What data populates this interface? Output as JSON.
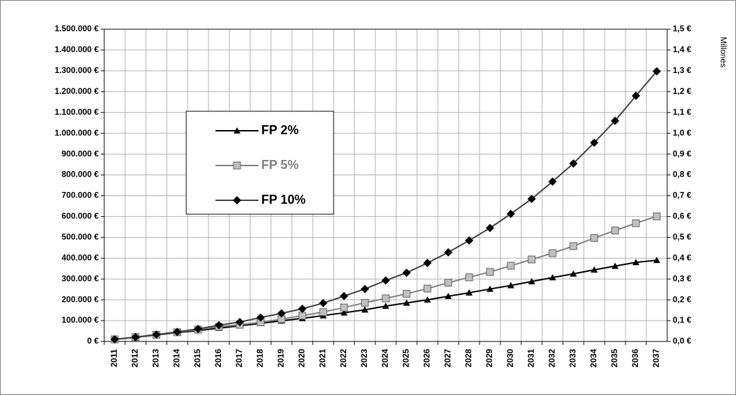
{
  "chart_data": {
    "type": "line",
    "categories": [
      "2011",
      "2012",
      "2013",
      "2014",
      "2015",
      "2016",
      "2017",
      "2018",
      "2019",
      "2020",
      "2021",
      "2022",
      "2023",
      "2024",
      "2025",
      "2026",
      "2027",
      "2028",
      "2029",
      "2030",
      "2031",
      "2032",
      "2033",
      "2034",
      "2035",
      "2036",
      "2037"
    ],
    "series": [
      {
        "name": "FP 2%",
        "color": "#000000",
        "marker_color": "#000000",
        "text_color": "#000000",
        "marker": "triangle",
        "values": [
          10000,
          20000,
          31000,
          42000,
          52000,
          64000,
          75000,
          87000,
          99000,
          111000,
          124000,
          138000,
          152000,
          170000,
          185000,
          200000,
          217000,
          234000,
          252000,
          269000,
          288000,
          307000,
          325000,
          344000,
          362000,
          380000,
          390000
        ]
      },
      {
        "name": "FP 5%",
        "color": "#808080",
        "marker_color": "#c0c0c0",
        "text_color": "#808080",
        "marker": "square",
        "values": [
          10000,
          21000,
          32000,
          44000,
          57000,
          70000,
          80000,
          92000,
          107000,
          124000,
          141000,
          163000,
          186000,
          207000,
          229000,
          254000,
          282000,
          308000,
          334000,
          364000,
          394000,
          424000,
          458000,
          497000,
          533000,
          568000,
          601000
        ]
      },
      {
        "name": "FP 10%",
        "color": "#404040",
        "marker_color": "#000000",
        "text_color": "#000000",
        "marker": "diamond",
        "values": [
          10000,
          21000,
          33000,
          46000,
          60000,
          78000,
          93000,
          115000,
          135000,
          157000,
          184000,
          218000,
          252000,
          293000,
          330000,
          377000,
          428000,
          485000,
          545000,
          613000,
          685000,
          768000,
          855000,
          955000,
          1060000,
          1180000,
          1298000
        ]
      }
    ],
    "ylim": [
      0,
      1500000
    ],
    "yticks": [
      {
        "value": 0,
        "label": "0 €"
      },
      {
        "value": 100000,
        "label": "100.000 €"
      },
      {
        "value": 200000,
        "label": "200.000 €"
      },
      {
        "value": 300000,
        "label": "300.000 €"
      },
      {
        "value": 400000,
        "label": "400.000 €"
      },
      {
        "value": 500000,
        "label": "500.000 €"
      },
      {
        "value": 600000,
        "label": "600.000 €"
      },
      {
        "value": 700000,
        "label": "700.000 €"
      },
      {
        "value": 800000,
        "label": "800.000 €"
      },
      {
        "value": 900000,
        "label": "900.000 €"
      },
      {
        "value": 1000000,
        "label": "1.000.000 €"
      },
      {
        "value": 1100000,
        "label": "1.100.000 €"
      },
      {
        "value": 1200000,
        "label": "1.200.000 €"
      },
      {
        "value": 1300000,
        "label": "1.300.000 €"
      },
      {
        "value": 1400000,
        "label": "1.400.000 €"
      },
      {
        "value": 1500000,
        "label": "1.500.000 €"
      }
    ],
    "y2lim": [
      0,
      1.5
    ],
    "y2ticks": [
      {
        "value": 0,
        "label": "0,0 €"
      },
      {
        "value": 0.1,
        "label": "0,1 €"
      },
      {
        "value": 0.2,
        "label": "0,2 €"
      },
      {
        "value": 0.3,
        "label": "0,3 €"
      },
      {
        "value": 0.4,
        "label": "0,4 €"
      },
      {
        "value": 0.5,
        "label": "0,5 €"
      },
      {
        "value": 0.6,
        "label": "0,6 €"
      },
      {
        "value": 0.7,
        "label": "0,7 €"
      },
      {
        "value": 0.8,
        "label": "0,8 €"
      },
      {
        "value": 0.9,
        "label": "0,9 €"
      },
      {
        "value": 1.0,
        "label": "1,0 €"
      },
      {
        "value": 1.1,
        "label": "1,1 €"
      },
      {
        "value": 1.2,
        "label": "1,2 €"
      },
      {
        "value": 1.3,
        "label": "1,3 €"
      },
      {
        "value": 1.4,
        "label": "1,4 €"
      },
      {
        "value": 1.5,
        "label": "1,5 €"
      }
    ],
    "y2_label": "Millones",
    "grid": true
  }
}
